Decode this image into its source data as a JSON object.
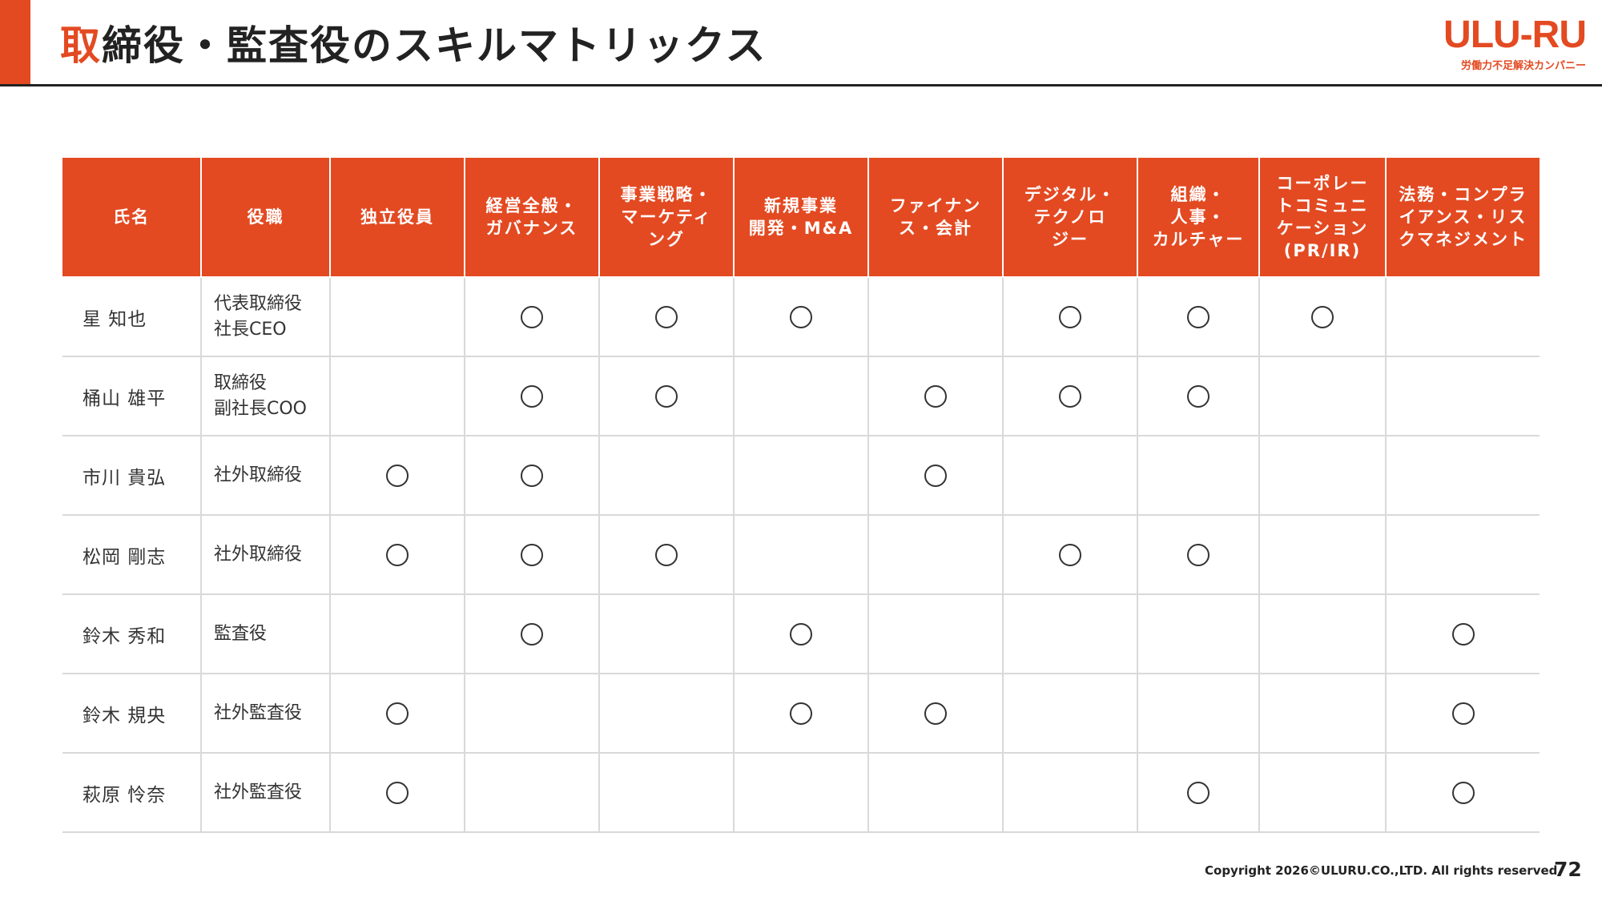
{
  "header": {
    "title_highlight": "取",
    "title_rest": "締役・監査役のスキルマトリックス"
  },
  "logo": {
    "wordmark": "ULU-RU",
    "tagline": "労働力不足解決カンパニー"
  },
  "colors": {
    "accent": "#e34a22",
    "text": "#333333",
    "grid": "#d9d9d9"
  },
  "table": {
    "columns": [
      "氏名",
      "役職",
      "独立役員",
      "経営全般・\nガバナンス",
      "事業戦略・\nマーケティ\nング",
      "新規事業\n開発・M&A",
      "ファイナン\nス・会計",
      "デジタル・\nテクノロ\nジー",
      "組織・\n人事・\nカルチャー",
      "コーポレー\nトコミュニ\nケーション\n(PR/IR)",
      "法務・コンプラ\nイアンス・リス\nクマネジメント"
    ],
    "mark_symbol": "circle",
    "rows": [
      {
        "name": "星 知也",
        "role": "代表取締役\n社長CEO",
        "marks": [
          false,
          true,
          true,
          true,
          false,
          true,
          true,
          true,
          false
        ]
      },
      {
        "name": "桶山 雄平",
        "role": "取締役\n副社長COO",
        "marks": [
          false,
          true,
          true,
          false,
          true,
          true,
          true,
          false,
          false
        ]
      },
      {
        "name": "市川 貴弘",
        "role": "社外取締役",
        "marks": [
          true,
          true,
          false,
          false,
          true,
          false,
          false,
          false,
          false
        ]
      },
      {
        "name": "松岡 剛志",
        "role": "社外取締役",
        "marks": [
          true,
          true,
          true,
          false,
          false,
          true,
          true,
          false,
          false
        ]
      },
      {
        "name": "鈴木 秀和",
        "role": "監査役",
        "marks": [
          false,
          true,
          false,
          true,
          false,
          false,
          false,
          false,
          true
        ]
      },
      {
        "name": "鈴木 規央",
        "role": "社外監査役",
        "marks": [
          true,
          false,
          false,
          true,
          true,
          false,
          false,
          false,
          true
        ]
      },
      {
        "name": "萩原 怜奈",
        "role": "社外監査役",
        "marks": [
          true,
          false,
          false,
          false,
          false,
          false,
          true,
          false,
          true
        ]
      }
    ]
  },
  "footer": {
    "copyright": "Copyright 2026©ULURU.CO.,LTD. All rights reserved.",
    "page_number": "72"
  }
}
